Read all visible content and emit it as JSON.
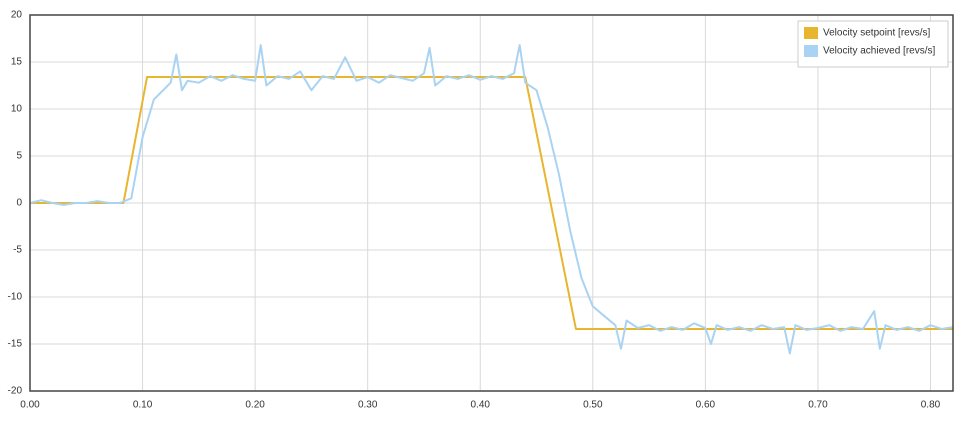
{
  "chart_data": {
    "type": "line",
    "series": [
      {
        "name": "Velocity setpoint [revs/s]",
        "color": "#e8b52e",
        "x": [
          0,
          0.083,
          0.104,
          0.44,
          0.485,
          0.82
        ],
        "values": [
          0,
          0,
          13.4,
          13.4,
          -13.4,
          -13.4
        ]
      },
      {
        "name": "Velocity achieved [revs/s]",
        "color": "#a9d3f2",
        "x": [
          0,
          0.01,
          0.02,
          0.03,
          0.04,
          0.05,
          0.06,
          0.07,
          0.08,
          0.09,
          0.1,
          0.11,
          0.12,
          0.125,
          0.13,
          0.135,
          0.14,
          0.15,
          0.16,
          0.17,
          0.18,
          0.19,
          0.2,
          0.205,
          0.21,
          0.22,
          0.23,
          0.24,
          0.25,
          0.26,
          0.27,
          0.28,
          0.29,
          0.3,
          0.31,
          0.32,
          0.33,
          0.34,
          0.35,
          0.355,
          0.36,
          0.37,
          0.38,
          0.39,
          0.4,
          0.41,
          0.42,
          0.43,
          0.435,
          0.44,
          0.45,
          0.46,
          0.47,
          0.48,
          0.49,
          0.5,
          0.51,
          0.52,
          0.525,
          0.53,
          0.54,
          0.55,
          0.56,
          0.57,
          0.58,
          0.59,
          0.6,
          0.605,
          0.61,
          0.62,
          0.63,
          0.64,
          0.65,
          0.66,
          0.67,
          0.675,
          0.68,
          0.69,
          0.7,
          0.71,
          0.72,
          0.73,
          0.74,
          0.75,
          0.755,
          0.76,
          0.77,
          0.78,
          0.79,
          0.8,
          0.81,
          0.82
        ],
        "values": [
          0,
          0.3,
          0,
          -0.2,
          0,
          0,
          0.2,
          0,
          0,
          0.5,
          7,
          11,
          12.2,
          12.8,
          15.8,
          12,
          13,
          12.8,
          13.5,
          13,
          13.6,
          13.2,
          13,
          16.8,
          12.5,
          13.5,
          13.2,
          14,
          12,
          13.5,
          13.2,
          15.5,
          13,
          13.4,
          12.8,
          13.6,
          13.3,
          13,
          13.8,
          16.5,
          12.5,
          13.5,
          13.2,
          13.6,
          13.1,
          13.5,
          13.2,
          13.8,
          16.8,
          12.8,
          12,
          8,
          3,
          -3,
          -8,
          -11,
          -12,
          -13,
          -15.5,
          -12.5,
          -13.3,
          -13,
          -13.6,
          -13.2,
          -13.5,
          -12.8,
          -13.3,
          -15,
          -13,
          -13.5,
          -13.2,
          -13.6,
          -13,
          -13.4,
          -13.2,
          -16,
          -13,
          -13.5,
          -13.3,
          -13,
          -13.6,
          -13.2,
          -13.4,
          -11.5,
          -15.5,
          -13,
          -13.5,
          -13.2,
          -13.6,
          -13,
          -13.4,
          -13.2
        ]
      }
    ],
    "xlim": [
      0,
      0.82
    ],
    "ylim": [
      -20,
      20
    ],
    "xticks": [
      {
        "value": 0,
        "label": "0.00"
      },
      {
        "value": 0.1,
        "label": "0.10"
      },
      {
        "value": 0.2,
        "label": "0.20"
      },
      {
        "value": 0.3,
        "label": "0.30"
      },
      {
        "value": 0.4,
        "label": "0.40"
      },
      {
        "value": 0.5,
        "label": "0.50"
      },
      {
        "value": 0.6,
        "label": "0.60"
      },
      {
        "value": 0.7,
        "label": "0.70"
      },
      {
        "value": 0.8,
        "label": "0.80"
      }
    ],
    "yticks": [
      -20,
      -15,
      -10,
      -5,
      0,
      5,
      10,
      15,
      20
    ],
    "grid": true,
    "legend": "top-right"
  }
}
